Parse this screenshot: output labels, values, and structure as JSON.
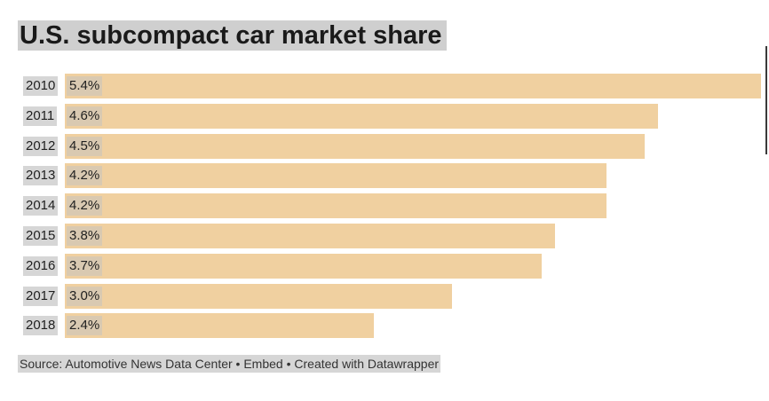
{
  "chart_data": {
    "type": "bar",
    "orientation": "horizontal",
    "title": "U.S. subcompact car market share",
    "categories": [
      "2010",
      "2011",
      "2012",
      "2013",
      "2014",
      "2015",
      "2016",
      "2017",
      "2018"
    ],
    "values": [
      5.4,
      4.6,
      4.5,
      4.2,
      4.2,
      3.8,
      3.7,
      3.0,
      2.4
    ],
    "value_labels": [
      "5.4%",
      "4.6%",
      "4.5%",
      "4.2%",
      "4.2%",
      "3.8%",
      "3.7%",
      "3.0%",
      "2.4%"
    ],
    "xlim": [
      0,
      5.4
    ],
    "grid": false,
    "bar_color": "#f0d0a0"
  },
  "footer": {
    "source": "Source: Automotive News Data Center • Embed • Created with Datawrapper"
  }
}
